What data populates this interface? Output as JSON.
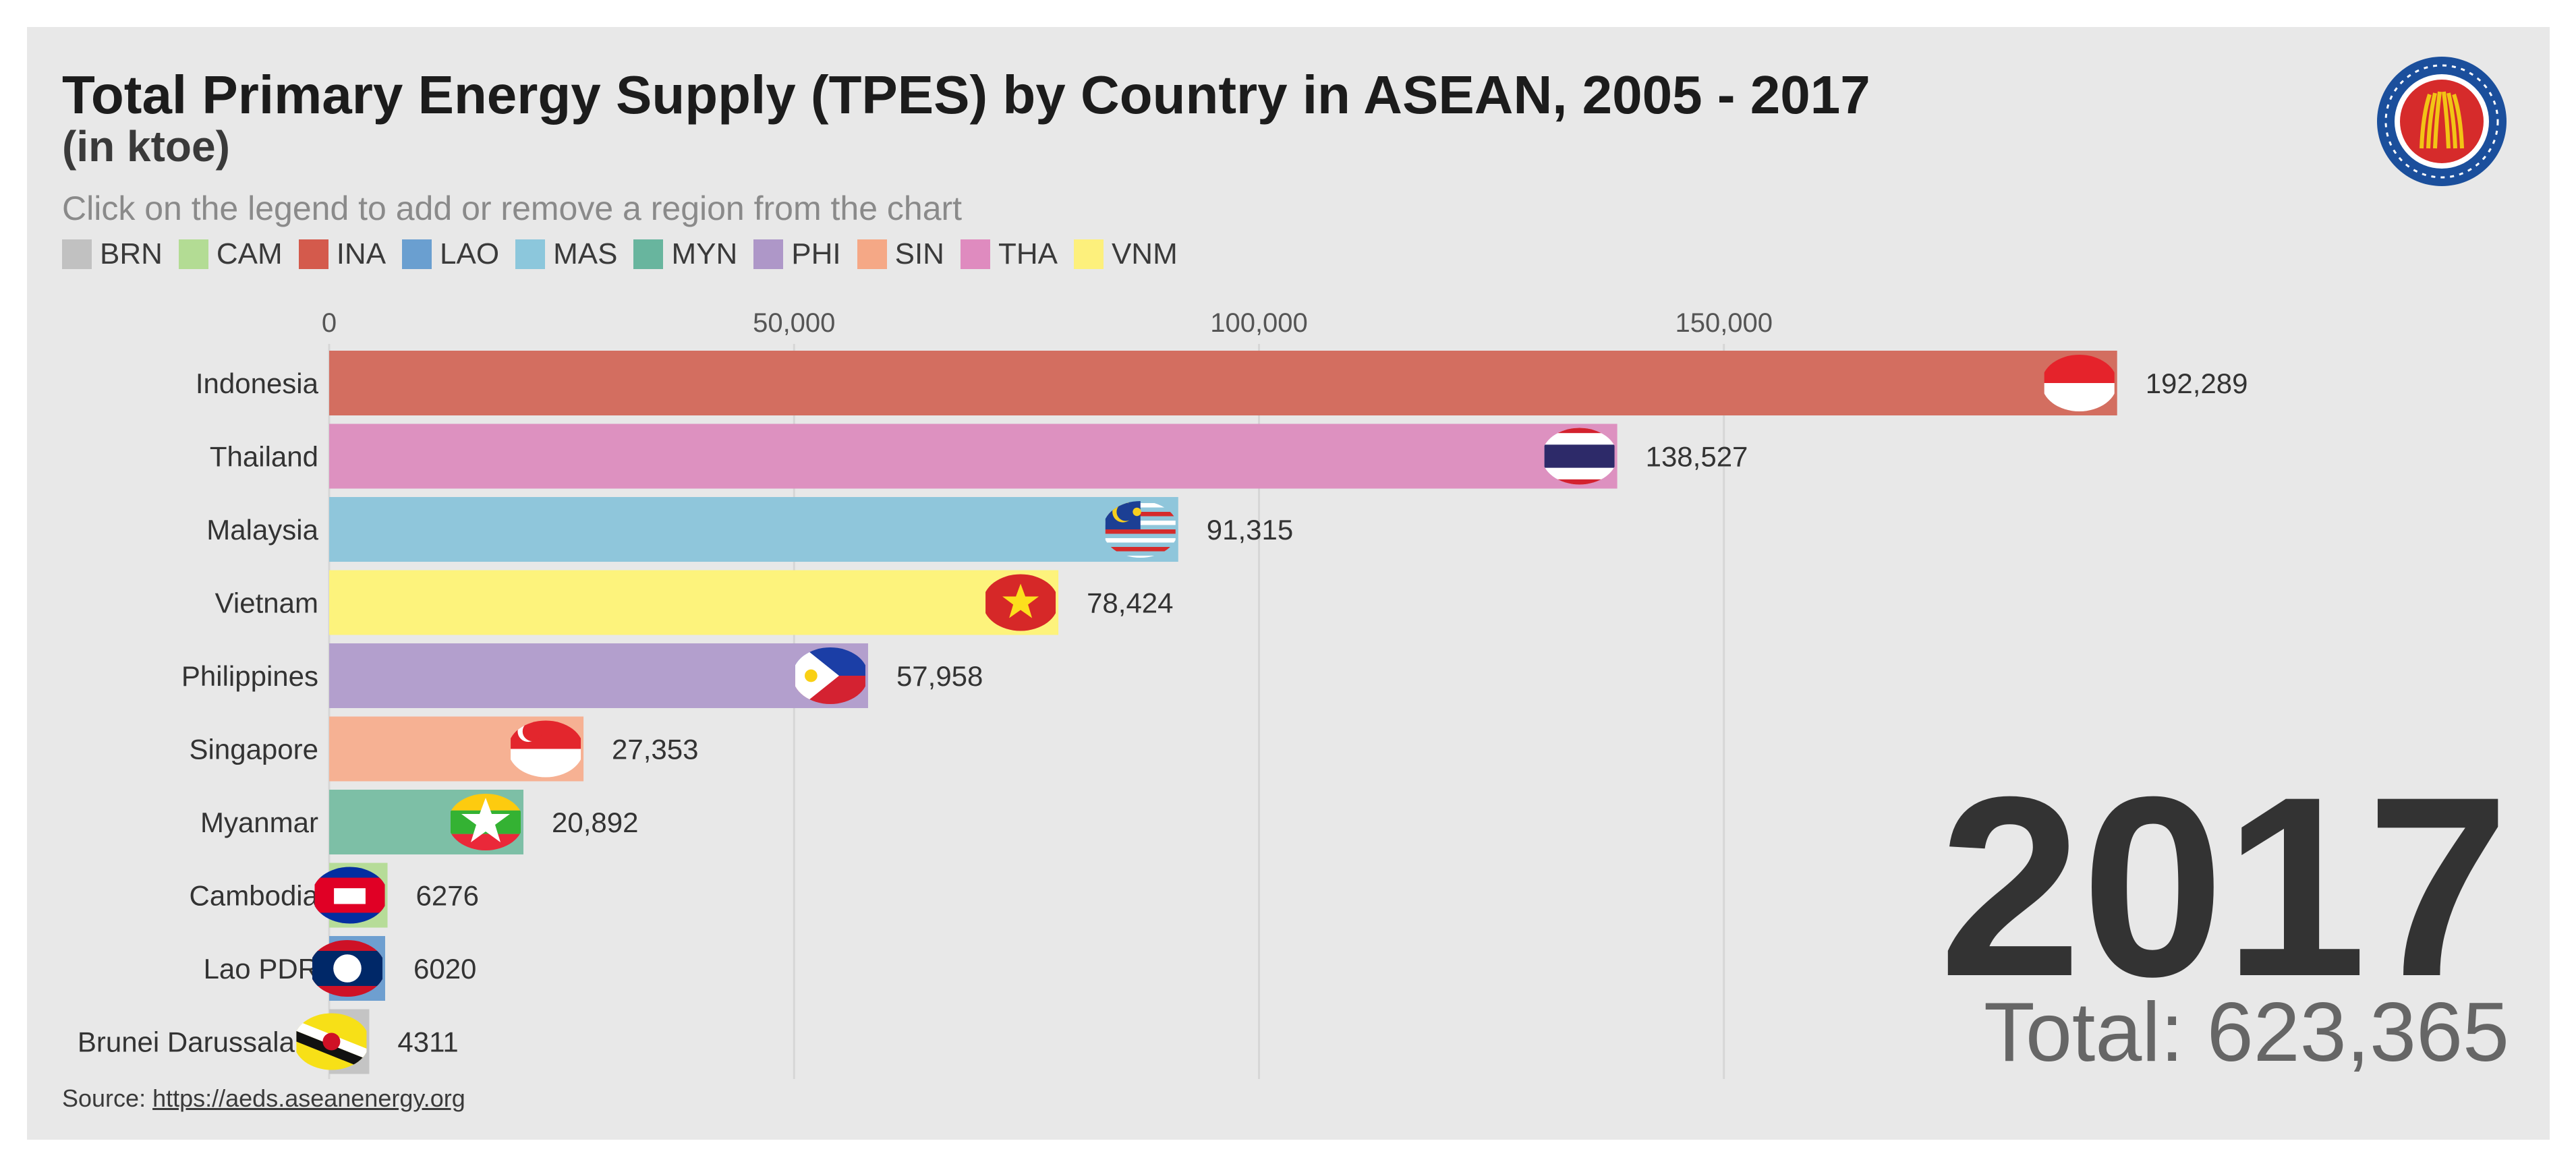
{
  "title": "Total Primary Energy Supply (TPES) by Country in ASEAN, 2005 - 2017",
  "subtitle": "(in ktoe)",
  "instruction": "Click on the legend to add or remove a region from the chart",
  "legend": [
    {
      "code": "BRN",
      "color": "#c1c1c1"
    },
    {
      "code": "CAM",
      "color": "#b3dc94"
    },
    {
      "code": "INA",
      "color": "#d45a4c"
    },
    {
      "code": "LAO",
      "color": "#6a9fd0"
    },
    {
      "code": "MAS",
      "color": "#8cc7dc"
    },
    {
      "code": "MYN",
      "color": "#68b59e"
    },
    {
      "code": "PHI",
      "color": "#ae97c8"
    },
    {
      "code": "SIN",
      "color": "#f5a886"
    },
    {
      "code": "THA",
      "color": "#df8bbf"
    },
    {
      "code": "VNM",
      "color": "#fdf07c"
    }
  ],
  "year": "2017",
  "total": "Total: 623,365",
  "source_prefix": "Source: ",
  "source_link": "https://aeds.aseanenergy.org",
  "chart_data": {
    "type": "bar",
    "orientation": "horizontal",
    "xlim": [
      0,
      200000
    ],
    "x_ticks": [
      0,
      50000,
      100000,
      150000
    ],
    "x_tick_labels": [
      "0",
      "50,000",
      "100,000",
      "150,000"
    ],
    "grid": true,
    "categories": [
      "Indonesia",
      "Thailand",
      "Malaysia",
      "Vietnam",
      "Philippines",
      "Singapore",
      "Myanmar",
      "Cambodia",
      "Lao PDR",
      "Brunei Darussalam"
    ],
    "values": [
      192289,
      138527,
      91315,
      78424,
      57958,
      27353,
      20892,
      6276,
      6020,
      4311
    ],
    "value_labels": [
      "192,289",
      "138,527",
      "91,315",
      "78,424",
      "57,958",
      "27,353",
      "20,892",
      "6276",
      "6020",
      "4311"
    ],
    "colors": [
      "#d36e60",
      "#dd91c0",
      "#8fc6db",
      "#fdf37c",
      "#b39fcd",
      "#f6b193",
      "#7dbfa6",
      "#b6dc98",
      "#6e9fd0",
      "#c4c4c4"
    ],
    "flags": [
      "flag-indonesia-icon",
      "flag-thailand-icon",
      "flag-malaysia-icon",
      "flag-vietnam-icon",
      "flag-philippines-icon",
      "flag-singapore-icon",
      "flag-myanmar-icon",
      "flag-cambodia-icon",
      "flag-laos-icon",
      "flag-brunei-icon"
    ]
  }
}
